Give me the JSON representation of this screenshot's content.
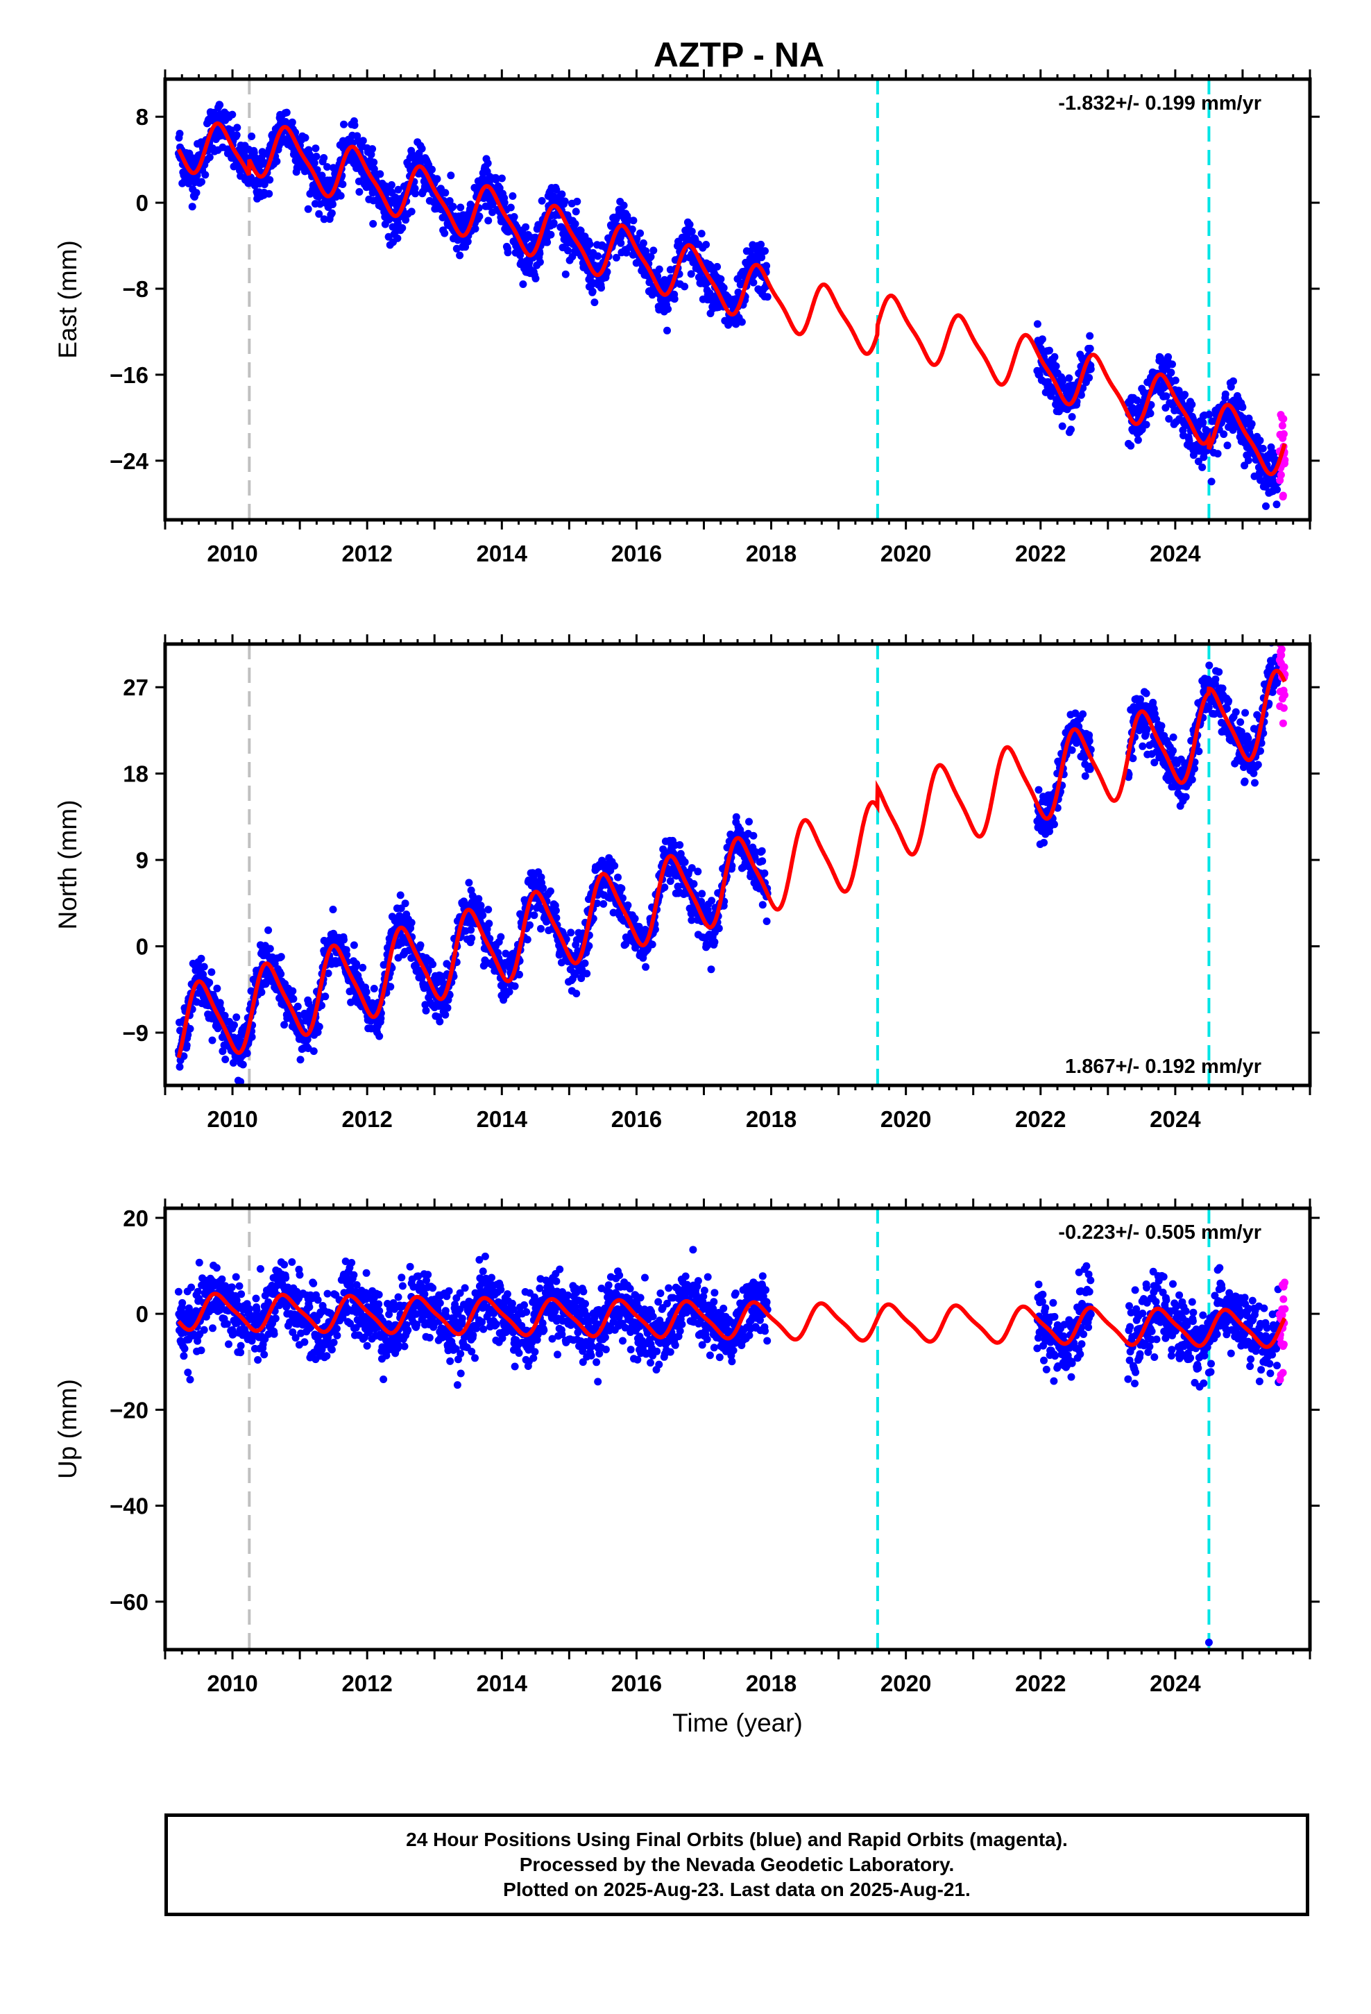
{
  "title": "AZTP - NA",
  "colors": {
    "final_orbits": "#0000ff",
    "rapid_orbits": "#ff00ff",
    "model": "#ff0000",
    "equipment_change": "#c0c0c0",
    "earthquake_offset": "#00e5e5"
  },
  "chart_data": [
    {
      "type": "scatter",
      "name": "East",
      "ylabel": "East (mm)",
      "xlim": [
        2009.0,
        2026.0
      ],
      "ylim": [
        -29.5,
        11.5
      ],
      "xticks": [
        2010,
        2012,
        2014,
        2016,
        2018,
        2020,
        2022,
        2024
      ],
      "yticks": [
        8,
        0,
        -8,
        -16,
        -24
      ],
      "rate_text": "-1.832+/- 0.199 mm/yr",
      "rate_value": -1.832,
      "rate_sigma": 0.199,
      "rate_position": "top-right",
      "vertical_lines": [
        {
          "x": 2010.25,
          "kind": "equipment_change"
        },
        {
          "x": 2019.58,
          "kind": "earthquake_offset"
        },
        {
          "x": 2024.5,
          "kind": "earthquake_offset"
        }
      ],
      "data_segments": [
        [
          2009.2,
          2017.95
        ],
        [
          2021.95,
          2022.75
        ],
        [
          2023.3,
          2025.55
        ]
      ],
      "rapid_range": [
        2025.55,
        2025.63
      ],
      "model": {
        "intercept": 5.8,
        "t0": 2009.2,
        "rate": -1.832,
        "annual_amp": 2.4,
        "annual_phase": 0.6,
        "semiannual_amp": 0.6,
        "scatter": 1.2,
        "offsets": [
          {
            "x": 2010.25,
            "dy": 1.5
          },
          {
            "x": 2019.58,
            "dy": 0.8
          },
          {
            "x": 2024.5,
            "dy": -1.0
          }
        ]
      }
    },
    {
      "type": "scatter",
      "name": "North",
      "ylabel": "North (mm)",
      "xlim": [
        2009.0,
        2026.0
      ],
      "ylim": [
        -14.5,
        31.5
      ],
      "xticks": [
        2010,
        2012,
        2014,
        2016,
        2018,
        2020,
        2022,
        2024
      ],
      "yticks": [
        27,
        18,
        9,
        0,
        -9
      ],
      "rate_text": "1.867+/- 0.192 mm/yr",
      "rate_value": 1.867,
      "rate_sigma": 0.192,
      "rate_position": "bottom-right",
      "vertical_lines": [
        {
          "x": 2010.25,
          "kind": "equipment_change"
        },
        {
          "x": 2019.58,
          "kind": "earthquake_offset"
        },
        {
          "x": 2024.5,
          "kind": "earthquake_offset"
        }
      ],
      "data_segments": [
        [
          2009.2,
          2017.95
        ],
        [
          2021.95,
          2022.75
        ],
        [
          2023.3,
          2025.55
        ]
      ],
      "rapid_range": [
        2025.55,
        2025.63
      ],
      "model": {
        "intercept": -8.5,
        "t0": 2009.2,
        "rate": 1.867,
        "annual_amp": 4.0,
        "annual_phase": 0.3,
        "semiannual_amp": 0.8,
        "scatter": 1.3,
        "offsets": [
          {
            "x": 2010.25,
            "dy": 0.0
          },
          {
            "x": 2019.58,
            "dy": 2.0
          },
          {
            "x": 2024.5,
            "dy": 0.5
          }
        ]
      }
    },
    {
      "type": "scatter",
      "name": "Up",
      "ylabel": "Up (mm)",
      "xlabel": "Time (year)",
      "xlim": [
        2009.0,
        2026.0
      ],
      "ylim": [
        -70.0,
        22.0
      ],
      "xticks": [
        2010,
        2012,
        2014,
        2016,
        2018,
        2020,
        2022,
        2024
      ],
      "yticks": [
        20,
        0,
        -20,
        -40,
        -60
      ],
      "rate_text": "-0.223+/- 0.505 mm/yr",
      "rate_value": -0.223,
      "rate_sigma": 0.505,
      "rate_position": "top-right",
      "vertical_lines": [
        {
          "x": 2010.25,
          "kind": "equipment_change"
        },
        {
          "x": 2019.58,
          "kind": "earthquake_offset"
        },
        {
          "x": 2024.5,
          "kind": "earthquake_offset"
        }
      ],
      "data_segments": [
        [
          2009.2,
          2017.95
        ],
        [
          2021.95,
          2022.75
        ],
        [
          2023.3,
          2025.55
        ]
      ],
      "rapid_range": [
        2025.55,
        2025.63
      ],
      "outliers": [
        {
          "x": 2024.5,
          "y": -68.5
        }
      ],
      "model": {
        "intercept": 0.5,
        "t0": 2009.2,
        "rate": -0.223,
        "annual_amp": 3.5,
        "annual_phase": 0.55,
        "semiannual_amp": 0.8,
        "scatter": 3.5,
        "offsets": []
      }
    }
  ],
  "footer": {
    "line1": "24 Hour Positions Using Final Orbits (blue) and Rapid Orbits (magenta).",
    "line2": "Processed by the Nevada Geodetic Laboratory.",
    "line3": "Plotted on 2025-Aug-23. Last data on 2025-Aug-21."
  }
}
